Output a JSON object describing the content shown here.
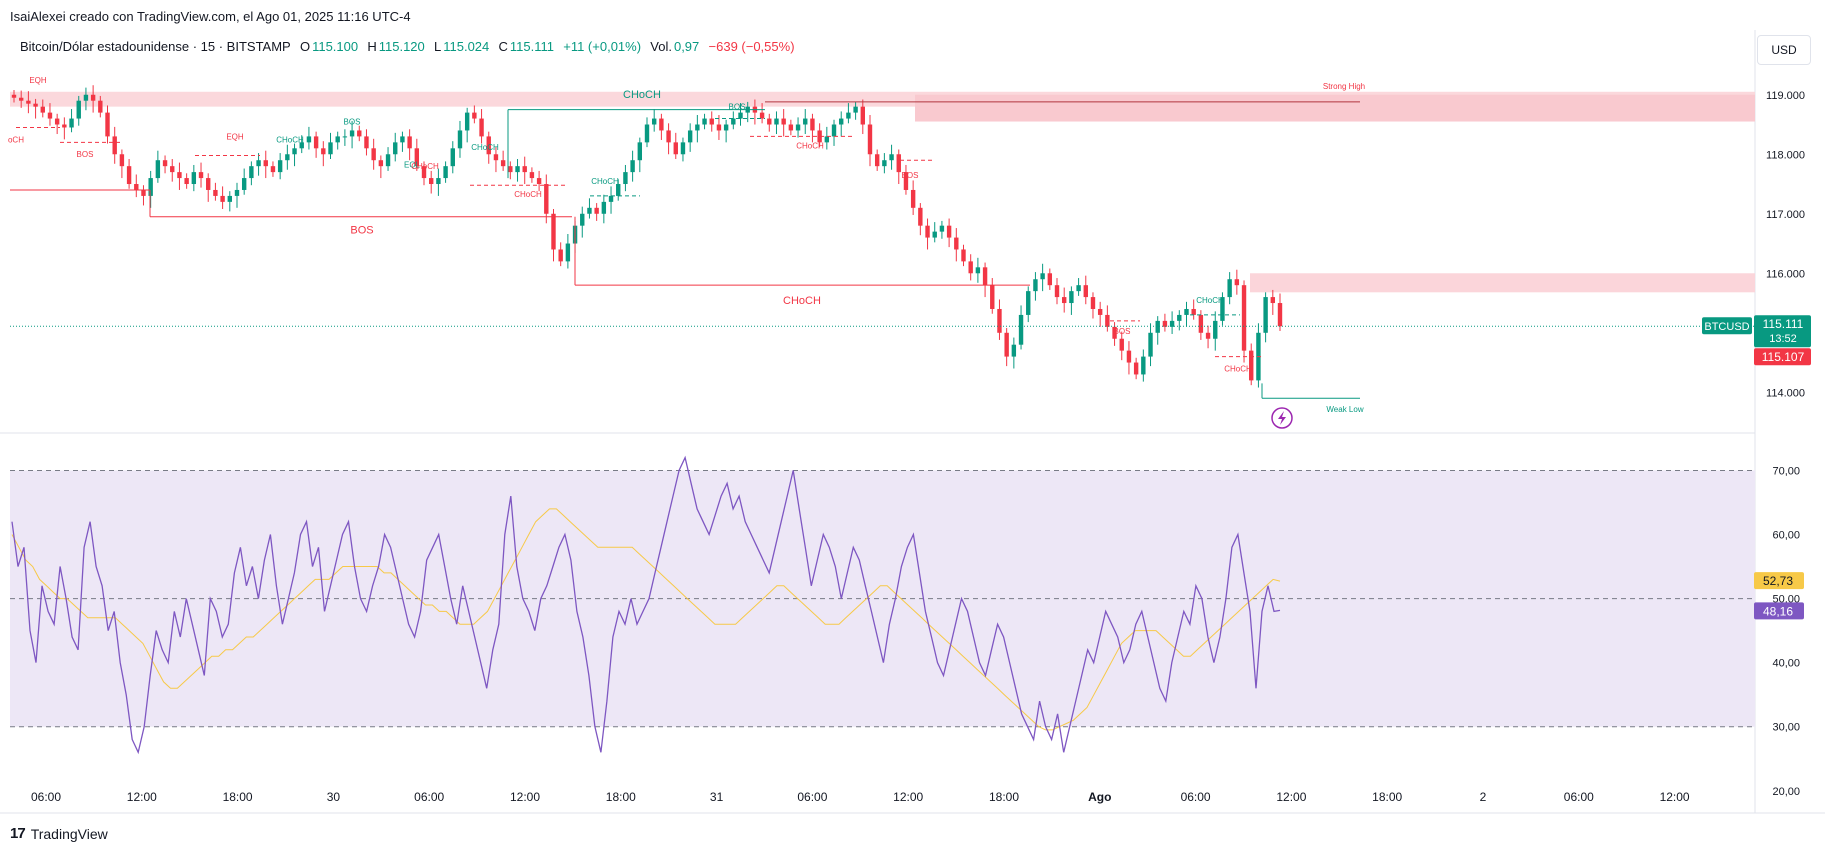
{
  "header": {
    "caption": "IsaiAlexei creado con TradingView.com, el Ago 01, 2025 11:16 UTC-4"
  },
  "legend": {
    "symbol": "Bitcoin/Dólar estadounidense · 15 · BITSTAMP",
    "o_label": "O",
    "o_value": "115.100",
    "h_label": "H",
    "h_value": "115.120",
    "l_label": "L",
    "l_value": "115.024",
    "c_label": "C",
    "c_value": "115.111",
    "change": "+11 (+0,01%)",
    "vol_label": "Vol.",
    "vol_value": "0,97",
    "vol_change": "−639 (−0,55%)"
  },
  "currency_button": "USD",
  "footer": {
    "brand": "TradingView",
    "mark": "17"
  },
  "colors": {
    "up": "#089981",
    "down": "#f23645",
    "rsi": "#7e57c2",
    "rsi_ma": "#f7c948",
    "zone_red": "#f7c6cc",
    "rsi_band": "#ede7f6"
  },
  "chart_data": [
    {
      "type": "candlestick",
      "title": "Bitcoin/Dólar estadounidense · 15 · BITSTAMP",
      "ylim": [
        113.4,
        119.5
      ],
      "y_ticks": [
        "119.000",
        "118.000",
        "117.000",
        "116.000",
        "114.000"
      ],
      "y_tick_values": [
        119,
        118,
        117,
        116,
        114
      ],
      "x_ticks": [
        "06:00",
        "12:00",
        "18:00",
        "30",
        "06:00",
        "12:00",
        "18:00",
        "31",
        "06:00",
        "12:00",
        "18:00",
        "Ago",
        "06:00",
        "12:00",
        "18:00",
        "2",
        "06:00",
        "12:00"
      ],
      "closes": [
        118.95,
        118.9,
        118.85,
        118.8,
        118.7,
        118.6,
        118.5,
        118.45,
        118.6,
        118.9,
        119.0,
        118.9,
        118.7,
        118.3,
        118.0,
        117.8,
        117.5,
        117.4,
        117.3,
        117.6,
        117.9,
        117.8,
        117.7,
        117.6,
        117.5,
        117.7,
        117.6,
        117.4,
        117.3,
        117.2,
        117.3,
        117.4,
        117.6,
        117.8,
        117.9,
        117.8,
        117.7,
        117.9,
        118.0,
        118.1,
        118.2,
        118.3,
        118.1,
        118.0,
        118.2,
        118.3,
        118.3,
        118.4,
        118.3,
        118.1,
        117.9,
        117.8,
        118.0,
        118.2,
        118.3,
        118.1,
        117.8,
        117.6,
        117.5,
        117.6,
        117.8,
        118.1,
        118.4,
        118.7,
        118.6,
        118.3,
        118.0,
        117.9,
        117.8,
        117.7,
        117.8,
        117.7,
        117.6,
        117.5,
        117.0,
        116.4,
        116.2,
        116.5,
        116.8,
        117.0,
        117.1,
        117.0,
        117.2,
        117.3,
        117.5,
        117.7,
        117.9,
        118.2,
        118.5,
        118.6,
        118.4,
        118.2,
        118.0,
        118.2,
        118.4,
        118.5,
        118.6,
        118.5,
        118.4,
        118.5,
        118.6,
        118.7,
        118.8,
        118.7,
        118.6,
        118.5,
        118.6,
        118.5,
        118.4,
        118.5,
        118.6,
        118.4,
        118.2,
        118.3,
        118.5,
        118.6,
        118.7,
        118.8,
        118.5,
        118.0,
        117.8,
        117.9,
        118.0,
        117.7,
        117.4,
        117.1,
        116.8,
        116.6,
        116.7,
        116.8,
        116.6,
        116.4,
        116.2,
        116.0,
        116.1,
        115.8,
        115.4,
        115.0,
        114.6,
        114.8,
        115.3,
        115.7,
        115.9,
        116.0,
        115.8,
        115.6,
        115.5,
        115.7,
        115.8,
        115.6,
        115.4,
        115.3,
        115.1,
        114.9,
        114.7,
        114.5,
        114.3,
        114.6,
        115.0,
        115.2,
        115.1,
        115.2,
        115.3,
        115.4,
        115.3,
        115.0,
        114.9,
        115.2,
        115.6,
        115.9,
        115.8,
        114.7,
        114.2,
        115.0,
        115.6,
        115.5,
        115.11
      ],
      "current_price": "115.111",
      "countdown": "13:52",
      "bid_price": "115.107",
      "symbol_tag": "BTCUSD",
      "annotations": [
        "EQH",
        "BOS",
        "EQH",
        "CHoCH",
        "BOS",
        "EQL",
        "CHoCH",
        "CHoCH",
        "CHoCH",
        "CHoCH",
        "BOS",
        "CHoCH",
        "CHoCH",
        "BOS",
        "Strong High",
        "BOS",
        "CHoCH",
        "BOS",
        "CHoCH",
        "CHoCH",
        "Weak Low"
      ],
      "labels": {
        "bos_big": "BOS",
        "choch_big": "CHoCH",
        "choch_top": "CHoCH",
        "strong_high": "Strong High",
        "weak_low": "Weak Low",
        "eqh": "EQH",
        "bos": "BOS",
        "choch": "CHoCH",
        "eql": "EQL",
        "edge_choch": "oCH"
      }
    },
    {
      "type": "line",
      "series": [
        {
          "name": "RSI"
        },
        {
          "name": "RSI MA"
        }
      ],
      "ylim": [
        17,
        76
      ],
      "y_ticks": [
        "70,00",
        "60,00",
        "50,00",
        "40,00",
        "30,00",
        "20,00"
      ],
      "y_tick_values": [
        70,
        60,
        50,
        40,
        30,
        20
      ],
      "bands": [
        30,
        50,
        70
      ],
      "rsi_last": "48,16",
      "ma_last": "52,73",
      "rsi": [
        62,
        55,
        58,
        45,
        40,
        52,
        48,
        46,
        55,
        50,
        44,
        42,
        58,
        62,
        55,
        52,
        45,
        48,
        40,
        35,
        28,
        26,
        30,
        38,
        45,
        42,
        40,
        48,
        44,
        50,
        46,
        42,
        38,
        50,
        48,
        44,
        46,
        54,
        58,
        52,
        55,
        50,
        56,
        60,
        52,
        46,
        50,
        54,
        60,
        62,
        55,
        58,
        48,
        52,
        56,
        60,
        62,
        55,
        50,
        48,
        52,
        55,
        60,
        58,
        54,
        50,
        46,
        44,
        48,
        56,
        58,
        60,
        55,
        50,
        46,
        52,
        48,
        44,
        40,
        36,
        42,
        46,
        60,
        66,
        55,
        50,
        48,
        45,
        50,
        52,
        55,
        58,
        60,
        56,
        48,
        44,
        38,
        30,
        26,
        34,
        44,
        48,
        46,
        50,
        46,
        48,
        50,
        54,
        58,
        62,
        66,
        70,
        72,
        68,
        64,
        62,
        60,
        63,
        66,
        68,
        64,
        66,
        62,
        60,
        58,
        56,
        54,
        58,
        62,
        66,
        70,
        64,
        58,
        52,
        56,
        60,
        58,
        55,
        50,
        54,
        58,
        56,
        52,
        48,
        44,
        40,
        46,
        50,
        55,
        58,
        60,
        54,
        48,
        44,
        40,
        38,
        42,
        46,
        50,
        48,
        44,
        40,
        38,
        42,
        46,
        44,
        40,
        36,
        32,
        30,
        28,
        34,
        30,
        28,
        32,
        26,
        30,
        34,
        38,
        42,
        40,
        44,
        48,
        46,
        44,
        40,
        42,
        46,
        48,
        44,
        40,
        36,
        34,
        40,
        44,
        48,
        46,
        52,
        50,
        44,
        40,
        44,
        50,
        58,
        60,
        54,
        48,
        36,
        48,
        52,
        48,
        48.16
      ],
      "ma": [
        60,
        58,
        56,
        55,
        53,
        52,
        51,
        50,
        50,
        49,
        48,
        47,
        47,
        47,
        47,
        47,
        46,
        45,
        44,
        43,
        41,
        39,
        37,
        36,
        36,
        37,
        38,
        39,
        40,
        41,
        41,
        42,
        42,
        43,
        44,
        44,
        45,
        46,
        47,
        48,
        49,
        50,
        51,
        52,
        53,
        53,
        53,
        54,
        55,
        55,
        55,
        55,
        55,
        55,
        54,
        54,
        53,
        52,
        51,
        50,
        49,
        49,
        48,
        48,
        47,
        46,
        46,
        46,
        47,
        48,
        50,
        52,
        54,
        56,
        58,
        60,
        62,
        63,
        64,
        64,
        63,
        62,
        61,
        60,
        59,
        58,
        58,
        58,
        58,
        58,
        58,
        57,
        56,
        55,
        54,
        53,
        52,
        51,
        50,
        49,
        48,
        47,
        46,
        46,
        46,
        46,
        47,
        48,
        49,
        50,
        51,
        52,
        52,
        51,
        50,
        49,
        48,
        47,
        46,
        46,
        46,
        47,
        48,
        49,
        50,
        51,
        52,
        52,
        51,
        50,
        49,
        48,
        47,
        46,
        45,
        44,
        43,
        42,
        41,
        40,
        39,
        38,
        37,
        36,
        35,
        34,
        33,
        32,
        31,
        30,
        29.5,
        29.5,
        30,
        30.5,
        31,
        32,
        33,
        35,
        37,
        39,
        41,
        43,
        44,
        45,
        45,
        45,
        45,
        44,
        43,
        42,
        41,
        41,
        42,
        43,
        44,
        45,
        46,
        47,
        48,
        49,
        50,
        51,
        52,
        53,
        52.73
      ]
    }
  ]
}
